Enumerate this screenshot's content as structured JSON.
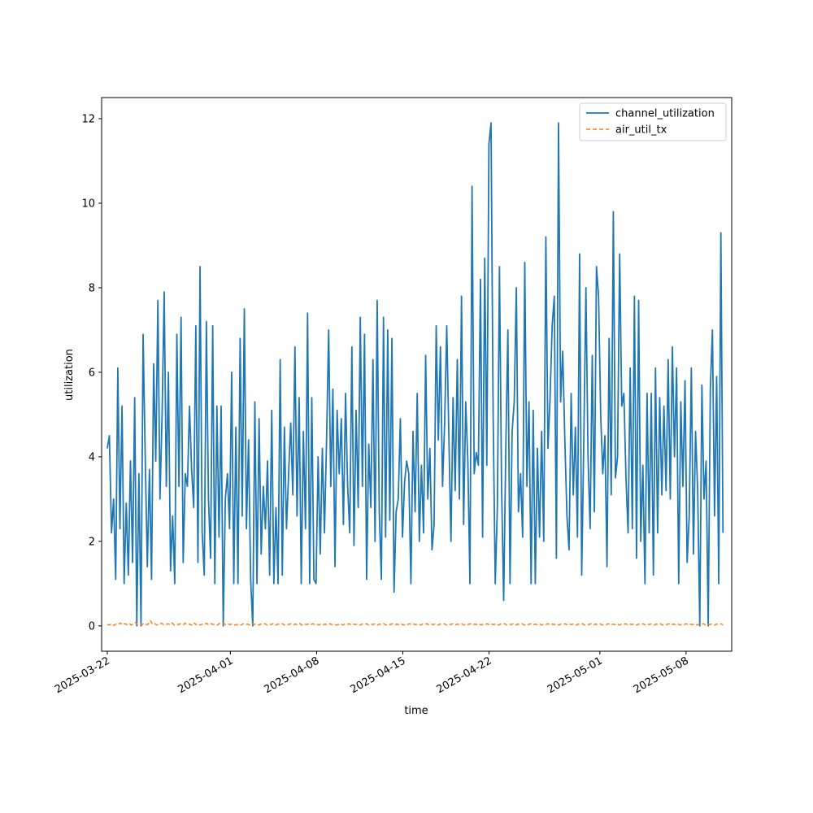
{
  "chart_data": {
    "type": "line",
    "title": "",
    "xlabel": "time",
    "ylabel": "utilization",
    "xlim": [
      "2025-03-21 13:00",
      "2025-05-11 17:00"
    ],
    "ylim": [
      -0.6,
      12.5
    ],
    "x_ticks": [
      "2025-03-22",
      "2025-04-01",
      "2025-04-08",
      "2025-04-15",
      "2025-04-22",
      "2025-05-01",
      "2025-05-08"
    ],
    "y_ticks": [
      0,
      2,
      4,
      6,
      8,
      10,
      12
    ],
    "grid": false,
    "legend_position": "top-right",
    "x_start": "2025-03-22 00:00",
    "x_end": "2025-05-11 00:00",
    "series": [
      {
        "name": "channel_utilization",
        "color": "#1f77b4",
        "style": "solid",
        "values": [
          4.2,
          4.5,
          2.2,
          3.0,
          1.1,
          6.1,
          2.3,
          5.2,
          1.0,
          2.9,
          1.2,
          3.9,
          1.5,
          5.4,
          0.0,
          3.6,
          0.0,
          6.9,
          4.0,
          1.4,
          3.7,
          1.1,
          6.2,
          3.9,
          7.7,
          3.0,
          5.0,
          7.9,
          3.3,
          6.0,
          1.3,
          2.6,
          1.0,
          6.9,
          3.3,
          7.3,
          1.5,
          3.6,
          3.3,
          5.2,
          3.7,
          2.8,
          7.1,
          1.5,
          8.5,
          2.2,
          1.2,
          7.2,
          3.0,
          1.6,
          7.1,
          1.0,
          5.2,
          2.1,
          5.2,
          0.0,
          3.0,
          3.6,
          2.3,
          6.0,
          1.0,
          4.7,
          1.0,
          6.8,
          2.6,
          7.5,
          2.3,
          4.4,
          1.1,
          0.0,
          5.3,
          1.0,
          4.9,
          1.7,
          3.3,
          2.3,
          3.9,
          1.2,
          5.1,
          1.0,
          2.8,
          1.0,
          6.3,
          1.2,
          4.7,
          2.3,
          3.6,
          4.8,
          3.1,
          6.6,
          2.6,
          5.4,
          1.0,
          4.6,
          2.3,
          7.4,
          1.0,
          5.4,
          1.1,
          1.0,
          4.0,
          1.7,
          4.2,
          2.2,
          4.4,
          7.0,
          3.3,
          5.6,
          1.4,
          5.1,
          3.6,
          4.9,
          2.4,
          5.5,
          3.3,
          2.2,
          6.6,
          1.9,
          5.1,
          2.8,
          7.3,
          3.3,
          6.9,
          1.1,
          4.3,
          2.8,
          6.3,
          2.0,
          7.7,
          2.7,
          1.1,
          7.3,
          2.1,
          7.0,
          2.5,
          6.8,
          0.8,
          2.7,
          3.0,
          4.9,
          2.1,
          3.4,
          3.9,
          3.6,
          1.0,
          4.6,
          2.7,
          5.5,
          2.0,
          3.8,
          2.2,
          6.4,
          3.0,
          4.2,
          1.8,
          2.4,
          7.1,
          4.4,
          6.6,
          3.3,
          4.8,
          7.1,
          4.5,
          2.0,
          5.4,
          3.2,
          6.3,
          3.0,
          7.8,
          2.4,
          5.3,
          3.9,
          1.0,
          10.4,
          3.6,
          4.1,
          3.8,
          8.2,
          2.1,
          8.7,
          3.8,
          11.4,
          11.9,
          5.0,
          1.0,
          2.8,
          8.5,
          3.3,
          0.6,
          4.2,
          7.0,
          1.0,
          4.6,
          5.3,
          8.0,
          2.7,
          3.6,
          2.1,
          8.6,
          3.3,
          5.3,
          1.0,
          5.1,
          1.0,
          4.2,
          2.1,
          4.6,
          2.0,
          9.2,
          4.2,
          5.4,
          7.1,
          7.8,
          1.6,
          11.9,
          5.3,
          6.5,
          4.4,
          2.6,
          1.8,
          5.5,
          3.1,
          4.7,
          2.1,
          8.8,
          1.2,
          4.4,
          8.0,
          4.0,
          2.3,
          6.4,
          2.7,
          8.5,
          7.8,
          5.0,
          3.6,
          4.5,
          1.4,
          6.8,
          3.1,
          9.8,
          3.5,
          4.0,
          8.8,
          5.2,
          5.5,
          3.5,
          2.2,
          6.1,
          2.3,
          7.8,
          1.6,
          7.7,
          2.0,
          3.8,
          1.0,
          5.5,
          2.2,
          5.5,
          1.2,
          6.1,
          2.2,
          5.4,
          3.1,
          5.2,
          3.2,
          6.3,
          3.0,
          6.6,
          4.0,
          6.1,
          1.0,
          5.3,
          3.3,
          5.8,
          1.5,
          2.6,
          6.1,
          1.7,
          4.6,
          3.2,
          0.0,
          5.7,
          3.0,
          3.9,
          0.0,
          5.6,
          7.0,
          2.6,
          5.9,
          1.0,
          9.3,
          2.2
        ],
        "line_width": 1.8
      },
      {
        "name": "air_util_tx",
        "color": "#ff7f0e",
        "style": "dashed",
        "values": [
          0.03,
          0.02,
          0.05,
          0.01,
          0.04,
          0.03,
          0.07,
          0.02,
          0.05,
          0.03,
          0.06,
          0.02,
          0.04,
          0.08,
          0.03,
          0.05,
          0.02,
          0.06,
          0.03,
          0.04,
          0.12,
          0.03,
          0.05,
          0.02,
          0.04,
          0.06,
          0.03,
          0.02,
          0.05,
          0.03,
          0.07,
          0.02,
          0.04,
          0.03,
          0.05,
          0.02,
          0.06,
          0.03,
          0.04,
          0.02,
          0.08,
          0.03,
          0.05,
          0.02,
          0.04,
          0.03,
          0.06,
          0.02,
          0.05,
          0.03,
          0.04,
          0.02,
          0.06,
          0.03,
          0.05,
          0.02,
          0.04,
          0.03,
          0.05,
          0.02,
          0.03,
          0.04,
          0.02,
          0.05,
          0.03,
          0.04,
          0.02,
          0.06,
          0.03,
          0.05,
          0.02,
          0.04,
          0.03,
          0.05,
          0.02,
          0.04,
          0.03,
          0.06,
          0.02,
          0.04,
          0.03,
          0.05,
          0.02,
          0.04,
          0.03,
          0.05,
          0.02,
          0.04,
          0.03,
          0.06,
          0.02,
          0.05,
          0.03,
          0.04,
          0.02,
          0.05,
          0.03,
          0.04,
          0.02,
          0.05,
          0.03,
          0.04,
          0.02,
          0.05,
          0.03,
          0.04,
          0.02,
          0.03,
          0.05,
          0.02,
          0.04,
          0.03,
          0.05,
          0.02,
          0.04,
          0.03,
          0.05,
          0.02,
          0.04,
          0.03,
          0.05,
          0.02,
          0.04,
          0.03,
          0.05,
          0.02,
          0.04,
          0.03,
          0.05,
          0.02,
          0.04,
          0.03,
          0.05,
          0.02,
          0.04,
          0.03,
          0.05,
          0.02,
          0.04,
          0.03,
          0.05,
          0.02,
          0.04,
          0.03,
          0.05,
          0.02,
          0.04,
          0.03,
          0.05,
          0.02,
          0.04,
          0.03,
          0.05,
          0.02,
          0.04,
          0.03,
          0.05,
          0.02,
          0.04,
          0.03,
          0.05,
          0.02,
          0.04,
          0.03,
          0.05,
          0.02,
          0.04,
          0.03,
          0.05,
          0.02,
          0.04,
          0.03,
          0.05,
          0.02,
          0.04,
          0.03,
          0.05,
          0.02,
          0.04,
          0.03,
          0.05,
          0.02,
          0.04,
          0.03,
          0.05,
          0.02,
          0.04,
          0.03,
          0.05,
          0.02,
          0.04,
          0.03,
          0.05,
          0.02,
          0.04,
          0.03,
          0.05,
          0.02,
          0.04,
          0.03,
          0.05,
          0.02,
          0.04,
          0.03,
          0.05,
          0.02,
          0.04,
          0.03,
          0.05,
          0.02,
          0.04,
          0.03,
          0.05,
          0.02,
          0.04,
          0.03,
          0.05,
          0.02,
          0.04,
          0.03,
          0.05,
          0.02,
          0.04,
          0.03,
          0.05,
          0.02,
          0.04,
          0.03,
          0.05,
          0.02,
          0.04,
          0.03,
          0.05,
          0.02,
          0.04,
          0.03,
          0.05,
          0.02,
          0.04,
          0.03,
          0.05,
          0.02,
          0.04,
          0.03,
          0.05,
          0.02,
          0.04,
          0.03,
          0.05,
          0.02,
          0.04,
          0.03,
          0.05,
          0.02,
          0.04,
          0.03,
          0.05,
          0.02,
          0.04,
          0.03,
          0.05,
          0.02,
          0.04,
          0.03,
          0.05,
          0.02,
          0.04,
          0.03,
          0.05,
          0.02,
          0.04,
          0.03,
          0.05,
          0.02,
          0.04,
          0.03,
          0.05,
          0.02,
          0.04,
          0.03,
          0.05,
          0.02,
          0.04,
          0.03,
          0.05,
          0.02
        ],
        "line_width": 1.5
      }
    ]
  }
}
